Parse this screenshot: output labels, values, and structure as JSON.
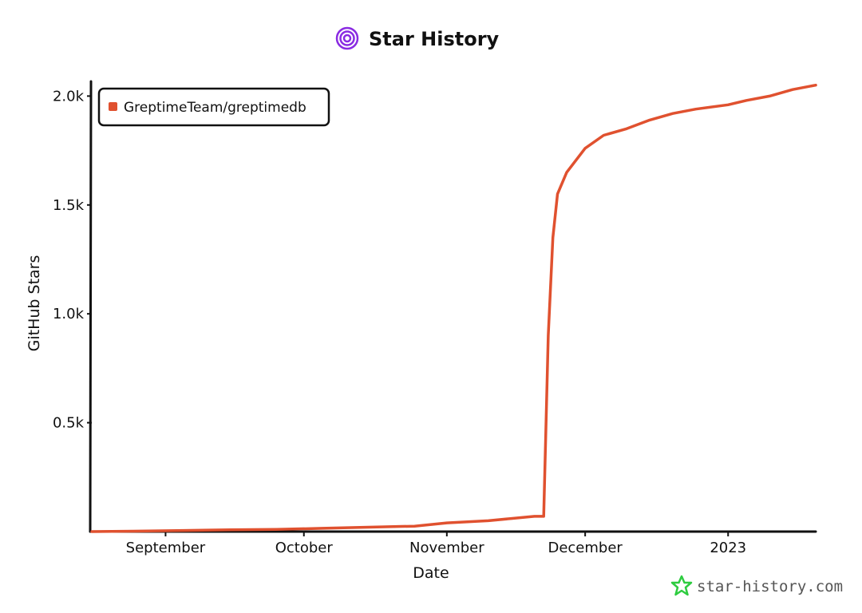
{
  "chart_data": {
    "type": "line",
    "title": "Star History",
    "xlabel": "Date",
    "ylabel": "GitHub Stars",
    "x_ticks": [
      "September",
      "October",
      "November",
      "December",
      "2023"
    ],
    "x_tick_dates": [
      "2022-09-01",
      "2022-10-01",
      "2022-11-01",
      "2022-12-01",
      "2023-01-01"
    ],
    "y_ticks": [
      "0.5k",
      "1.0k",
      "1.5k",
      "2.0k"
    ],
    "y_tick_values": [
      500,
      1000,
      1500,
      2000
    ],
    "xlim": [
      "2022-08-16",
      "2023-01-20"
    ],
    "ylim": [
      0,
      2060
    ],
    "legend_position": "top-left",
    "grid": false,
    "series": [
      {
        "name": "GreptimeTeam/greptimedb",
        "color": "#e0512f",
        "points": [
          [
            "2022-08-16",
            0
          ],
          [
            "2022-08-25",
            2
          ],
          [
            "2022-09-05",
            5
          ],
          [
            "2022-09-15",
            8
          ],
          [
            "2022-09-25",
            10
          ],
          [
            "2022-10-05",
            15
          ],
          [
            "2022-10-15",
            20
          ],
          [
            "2022-10-25",
            25
          ],
          [
            "2022-11-01",
            40
          ],
          [
            "2022-11-10",
            50
          ],
          [
            "2022-11-15",
            60
          ],
          [
            "2022-11-20",
            70
          ],
          [
            "2022-11-22",
            70
          ],
          [
            "2022-11-23",
            900
          ],
          [
            "2022-11-24",
            1350
          ],
          [
            "2022-11-25",
            1550
          ],
          [
            "2022-11-27",
            1650
          ],
          [
            "2022-12-01",
            1760
          ],
          [
            "2022-12-05",
            1820
          ],
          [
            "2022-12-10",
            1850
          ],
          [
            "2022-12-15",
            1890
          ],
          [
            "2022-12-20",
            1920
          ],
          [
            "2022-12-25",
            1940
          ],
          [
            "2023-01-01",
            1960
          ],
          [
            "2023-01-05",
            1980
          ],
          [
            "2023-01-10",
            2000
          ],
          [
            "2023-01-15",
            2030
          ],
          [
            "2023-01-20",
            2050
          ]
        ]
      }
    ]
  },
  "watermark": "star-history.com",
  "colors": {
    "logo": "#8a2be2",
    "watermark_icon": "#2ecc40",
    "axis": "#111111"
  }
}
